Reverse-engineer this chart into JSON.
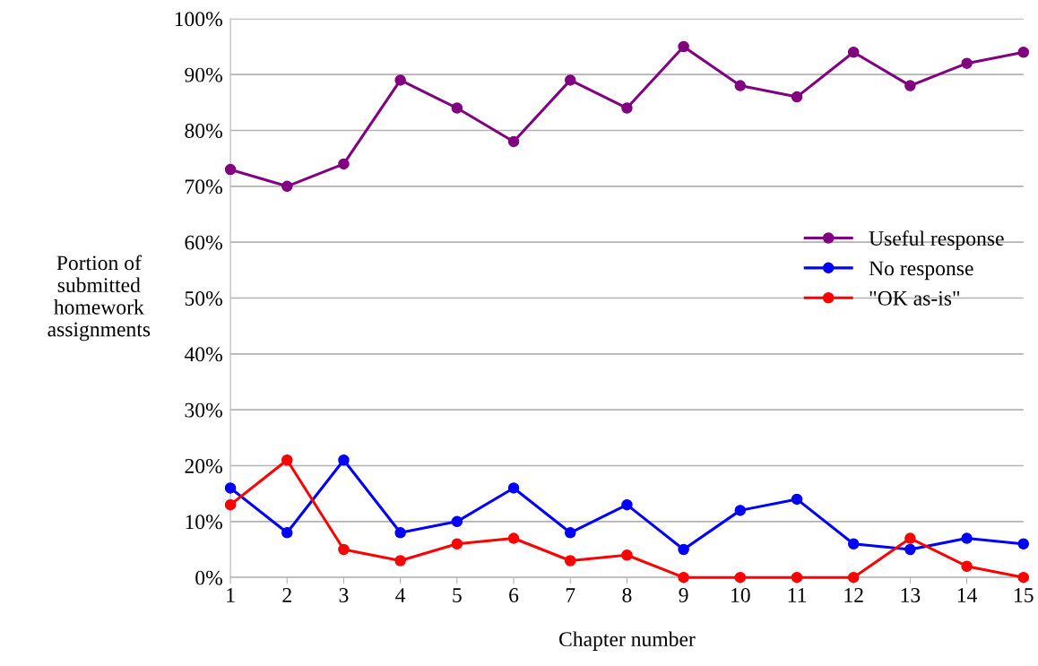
{
  "chart_data": {
    "type": "line",
    "xlabel": "Chapter number",
    "ylabel": "Portion of\nsubmitted\nhomework\nassignments",
    "x": [
      1,
      2,
      3,
      4,
      5,
      6,
      7,
      8,
      9,
      10,
      11,
      12,
      13,
      14,
      15
    ],
    "series": [
      {
        "name": "Useful response",
        "color": "#800080",
        "values": [
          73,
          70,
          74,
          89,
          84,
          78,
          89,
          84,
          95,
          88,
          86,
          94,
          88,
          92,
          94
        ]
      },
      {
        "name": "No response",
        "color": "#0000ff",
        "values": [
          16,
          8,
          21,
          8,
          10,
          16,
          8,
          13,
          5,
          12,
          14,
          6,
          5,
          7,
          6
        ]
      },
      {
        "name": "\"OK as-is\"",
        "color": "#ff0000",
        "values": [
          13,
          21,
          5,
          3,
          6,
          7,
          3,
          4,
          0,
          0,
          0,
          0,
          7,
          2,
          0
        ]
      }
    ],
    "xlim": [
      1,
      15
    ],
    "xticks": [
      1,
      2,
      3,
      4,
      5,
      6,
      7,
      8,
      9,
      10,
      11,
      12,
      13,
      14,
      15
    ],
    "ylim": [
      0,
      100
    ],
    "yticks": [
      {
        "value": 0,
        "label": "0%"
      },
      {
        "value": 10,
        "label": "10%"
      },
      {
        "value": 20,
        "label": "20%"
      },
      {
        "value": 30,
        "label": "30%"
      },
      {
        "value": 40,
        "label": "40%"
      },
      {
        "value": 50,
        "label": "50%"
      },
      {
        "value": 60,
        "label": "60%"
      },
      {
        "value": 70,
        "label": "70%"
      },
      {
        "value": 80,
        "label": "80%"
      },
      {
        "value": 90,
        "label": "90%"
      },
      {
        "value": 100,
        "label": "100%"
      }
    ],
    "grid": "y",
    "legend": "center right",
    "marker": "circle",
    "line_style": "solid"
  }
}
